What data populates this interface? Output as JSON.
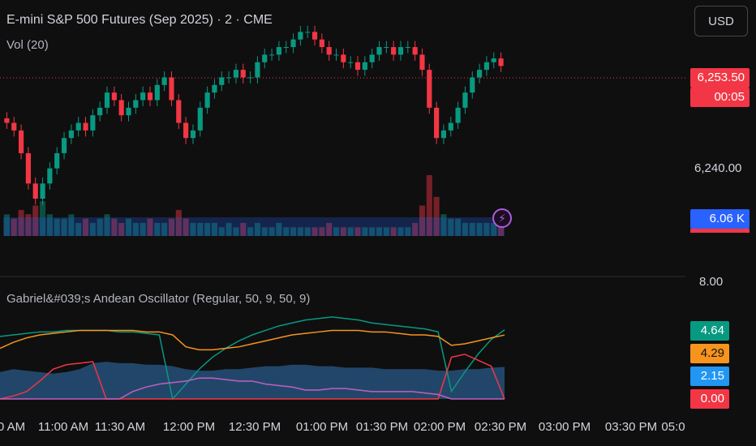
{
  "header": {
    "symbol_title": "E-mini S&P 500 Futures (Sep 2025) · 2 · CME",
    "volume_title": "Vol (20)",
    "currency_button": "USD"
  },
  "price_axis": {
    "last_price": "6,253.50",
    "countdown": "00:05",
    "tick_6240": "6,240.00",
    "volume_badge": "6.06 K",
    "last_price_color": "#f23645",
    "volume_badge_color": "#2962ff"
  },
  "oscillator": {
    "title": "Gabriel&#039;s Andean Oscillator (Regular, 50, 9, 50, 9)",
    "axis_top": "8.00",
    "values": [
      {
        "label": "4.64",
        "color": "#089981"
      },
      {
        "label": "4.29",
        "color": "#f7941d"
      },
      {
        "label": "2.15",
        "color": "#2196f3"
      },
      {
        "label": "0.00",
        "color": "#f23645"
      }
    ]
  },
  "time_axis": [
    "0 AM",
    "11:00 AM",
    "11:30 AM",
    "12:00 PM",
    "12:30 PM",
    "01:00 PM",
    "01:30 PM",
    "02:00 PM",
    "02:30 PM",
    "03:00 PM",
    "03:30 PM",
    "05:0"
  ],
  "icons": {
    "alert": "lightning-icon"
  },
  "chart_data": {
    "type": "candlestick",
    "title": "E-mini S&P 500 Futures (Sep 2025) · 2 · CME",
    "price_ylim": [
      6236,
      6259
    ],
    "last_price": 6253.5,
    "close_series": [
      6246,
      6245,
      6242,
      6238,
      6236,
      6238,
      6240,
      6242,
      6244,
      6245,
      6246,
      6245,
      6247,
      6248,
      6250,
      6249,
      6247,
      6248,
      6249,
      6250,
      6249,
      6251,
      6252,
      6249,
      6246,
      6244,
      6245,
      6248,
      6250,
      6251,
      6252,
      6252,
      6253,
      6252,
      6252,
      6254,
      6255,
      6255,
      6256,
      6256,
      6257,
      6258,
      6258,
      6257,
      6256,
      6255,
      6255,
      6254,
      6254,
      6253,
      6254,
      6255,
      6256,
      6256,
      6255,
      6256,
      6256,
      6255,
      6253,
      6248,
      6244,
      6245,
      6246,
      6248,
      6250,
      6252,
      6253,
      6254,
      6254.5,
      6253.5
    ],
    "volume_series": [
      5,
      4,
      6,
      5,
      7,
      8,
      5,
      4,
      4,
      5,
      3,
      4,
      3,
      4,
      5,
      4,
      3,
      4,
      3,
      3,
      4,
      3,
      3,
      4,
      6,
      4,
      3,
      3,
      3,
      3,
      2,
      3,
      2,
      3,
      2,
      3,
      2,
      2,
      3,
      2,
      2,
      2,
      2,
      2,
      2,
      3,
      2,
      2,
      2,
      2,
      2,
      2,
      2,
      2,
      2,
      2,
      2,
      3,
      7,
      14,
      9,
      5,
      4,
      4,
      3,
      3,
      3,
      3,
      3,
      4
    ],
    "oscillator_ylim": [
      0,
      8
    ],
    "oscillator_series": [
      {
        "name": "",
        "color": "#089981",
        "values": [
          4.2,
          4.3,
          4.4,
          4.5,
          4.5,
          4.6,
          4.6,
          4.6,
          4.6,
          4.5,
          4.5,
          4.4,
          4.3,
          0.0,
          1.0,
          2.0,
          2.8,
          3.4,
          3.9,
          4.3,
          4.6,
          4.9,
          5.1,
          5.3,
          5.4,
          5.5,
          5.4,
          5.3,
          5.1,
          5.0,
          4.9,
          4.8,
          4.7,
          4.5,
          0.5,
          1.8,
          3.0,
          4.0,
          4.64
        ]
      },
      {
        "name": "",
        "color": "#f7941d",
        "values": [
          3.4,
          3.8,
          4.1,
          4.3,
          4.4,
          4.5,
          4.6,
          4.6,
          4.6,
          4.6,
          4.6,
          4.5,
          4.5,
          4.3,
          3.5,
          3.3,
          3.3,
          3.4,
          3.5,
          3.7,
          3.9,
          4.1,
          4.3,
          4.4,
          4.5,
          4.6,
          4.6,
          4.6,
          4.5,
          4.5,
          4.4,
          4.3,
          4.3,
          4.2,
          3.6,
          3.7,
          3.9,
          4.1,
          4.29
        ]
      },
      {
        "name": "",
        "color": "#f23645",
        "values": [
          0.0,
          0.2,
          0.5,
          1.2,
          2.0,
          2.3,
          2.4,
          2.5,
          0.0,
          0.0,
          0.0,
          0.0,
          0.0,
          0.0,
          0.0,
          0.0,
          0.0,
          0.0,
          0.0,
          0.0,
          0.0,
          0.0,
          0.0,
          0.0,
          0.0,
          0.0,
          0.0,
          0.0,
          0.0,
          0.0,
          0.0,
          0.0,
          0.0,
          0.0,
          2.8,
          3.0,
          2.6,
          2.2,
          0.0
        ]
      },
      {
        "name": "",
        "color": "#c060c0",
        "values": [
          0.0,
          0.0,
          0.0,
          0.0,
          0.0,
          0.0,
          0.0,
          0.0,
          0.0,
          0.0,
          0.5,
          0.8,
          1.0,
          1.1,
          1.2,
          1.4,
          1.4,
          1.3,
          1.2,
          1.2,
          1.0,
          0.9,
          0.8,
          0.6,
          0.6,
          0.7,
          0.7,
          0.6,
          0.5,
          0.5,
          0.5,
          0.5,
          0.4,
          0.3,
          0.0,
          0.0,
          0.0,
          0.0,
          0.0
        ]
      },
      {
        "name": "",
        "color": "#2a5a8a",
        "values": [
          1.8,
          2.0,
          1.9,
          1.8,
          1.7,
          1.8,
          2.0,
          2.4,
          2.5,
          2.4,
          2.4,
          2.3,
          2.3,
          2.2,
          2.0,
          1.9,
          1.9,
          2.0,
          2.0,
          2.1,
          2.2,
          2.2,
          2.3,
          2.3,
          2.2,
          2.2,
          2.1,
          2.1,
          2.1,
          2.0,
          2.0,
          2.0,
          2.0,
          1.9,
          1.9,
          2.0,
          2.0,
          2.1,
          2.15
        ]
      }
    ]
  }
}
